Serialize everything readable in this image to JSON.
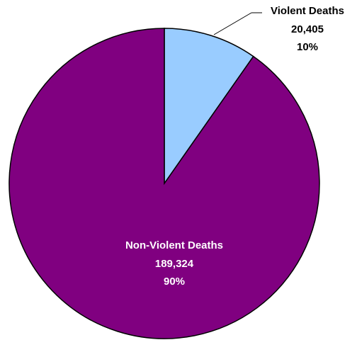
{
  "chart_data": {
    "type": "pie",
    "slices": [
      {
        "name": "Violent Deaths",
        "value": 20405,
        "value_label": "20,405",
        "percent_label": "10%",
        "color": "#99CCFF",
        "label_color": "#000000"
      },
      {
        "name": "Non-Violent Deaths",
        "value": 189324,
        "value_label": "189,324",
        "percent_label": "90%",
        "color": "#800080",
        "label_color": "#FFFFFF"
      }
    ],
    "start_angle_deg": 0,
    "direction": "clockwise",
    "legend": "none",
    "border_color": "#000000"
  }
}
